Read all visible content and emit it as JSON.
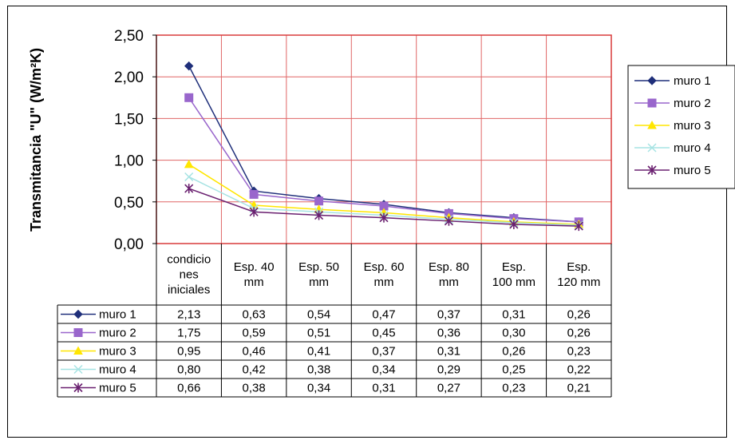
{
  "chart_data": {
    "type": "line",
    "ylabel": "Transmitancia \"U\" (W/m²K)",
    "ylim": [
      0,
      2.5
    ],
    "yticks": [
      "0,00",
      "0,50",
      "1,00",
      "1,50",
      "2,00",
      "2,50"
    ],
    "categories": [
      [
        "condicio",
        "nes",
        "iniciales"
      ],
      [
        "Esp. 40",
        "mm"
      ],
      [
        "Esp. 50",
        "mm"
      ],
      [
        "Esp. 60",
        "mm"
      ],
      [
        "Esp. 80",
        "mm"
      ],
      [
        "Esp.",
        "100 mm"
      ],
      [
        "Esp.",
        "120 mm"
      ]
    ],
    "series": [
      {
        "name": "muro 1",
        "color": "#1F2F7A",
        "marker": "diamond",
        "values": [
          2.13,
          0.63,
          0.54,
          0.47,
          0.37,
          0.31,
          0.26
        ],
        "labels": [
          "2,13",
          "0,63",
          "0,54",
          "0,47",
          "0,37",
          "0,31",
          "0,26"
        ]
      },
      {
        "name": "muro 2",
        "color": "#9966CC",
        "marker": "square",
        "values": [
          1.75,
          0.59,
          0.51,
          0.45,
          0.36,
          0.3,
          0.26
        ],
        "labels": [
          "1,75",
          "0,59",
          "0,51",
          "0,45",
          "0,36",
          "0,30",
          "0,26"
        ]
      },
      {
        "name": "muro 3",
        "color": "#FFE600",
        "marker": "triangle",
        "values": [
          0.95,
          0.46,
          0.41,
          0.37,
          0.31,
          0.26,
          0.23
        ],
        "labels": [
          "0,95",
          "0,46",
          "0,41",
          "0,37",
          "0,31",
          "0,26",
          "0,23"
        ]
      },
      {
        "name": "muro 4",
        "color": "#A6E3E3",
        "marker": "x",
        "values": [
          0.8,
          0.42,
          0.38,
          0.34,
          0.29,
          0.25,
          0.22
        ],
        "labels": [
          "0,80",
          "0,42",
          "0,38",
          "0,34",
          "0,29",
          "0,25",
          "0,22"
        ]
      },
      {
        "name": "muro 5",
        "color": "#6A2070",
        "marker": "star",
        "values": [
          0.66,
          0.38,
          0.34,
          0.31,
          0.27,
          0.23,
          0.21
        ],
        "labels": [
          "0,66",
          "0,38",
          "0,34",
          "0,31",
          "0,27",
          "0,23",
          "0,21"
        ]
      }
    ],
    "grid": true,
    "gridColor": "#E06666",
    "legend": "right",
    "data_table": true
  }
}
